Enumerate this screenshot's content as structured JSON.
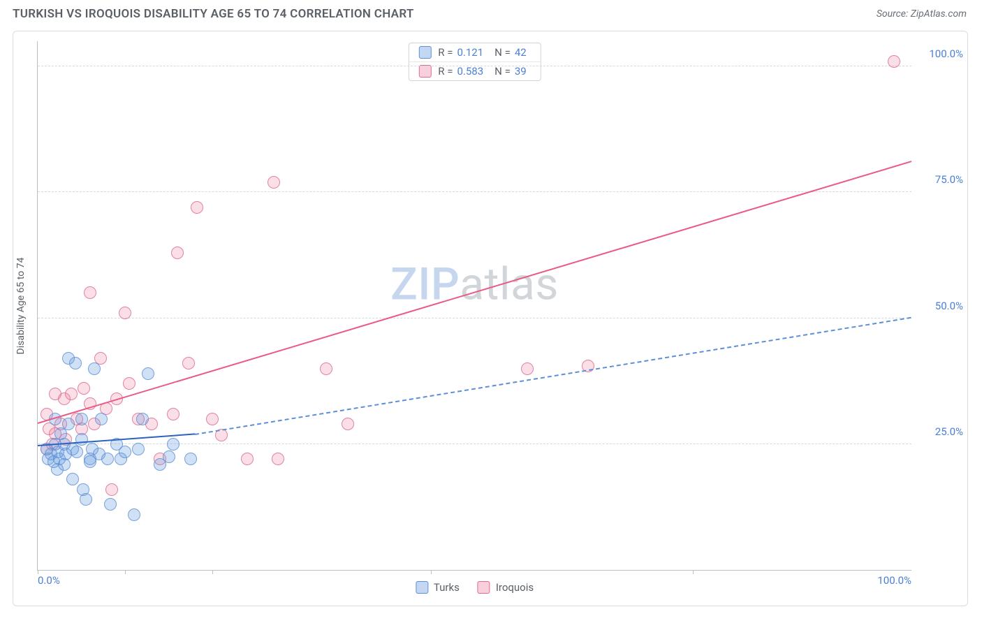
{
  "header": {
    "title": "TURKISH VS IROQUOIS DISABILITY AGE 65 TO 74 CORRELATION CHART",
    "source": "Source: ZipAtlas.com"
  },
  "watermark": {
    "part1": "ZIP",
    "part2": "atlas"
  },
  "chart": {
    "type": "scatter",
    "ylabel": "Disability Age 65 to 74",
    "xlim": [
      0,
      100
    ],
    "ylim": [
      0,
      105
    ],
    "background_color": "#ffffff",
    "grid_color": "#d5d9de",
    "axis_color": "#b9bec4",
    "tick_label_color": "#4b7fd6",
    "y_gridlines": [
      25,
      50,
      75,
      100
    ],
    "y_tick_labels": [
      "25.0%",
      "50.0%",
      "75.0%",
      "100.0%"
    ],
    "x_minor_ticks": [
      0,
      10,
      20,
      45,
      75
    ],
    "x_tick_labels": [
      {
        "x": 0,
        "label": "0.0%"
      },
      {
        "x": 100,
        "label": "100.0%"
      }
    ],
    "marker_size": 18,
    "series": {
      "a": {
        "label": "Turks",
        "fill": "rgba(104,156,224,0.35)",
        "stroke": "#5d8fd6",
        "R": "0.121",
        "N": "42",
        "trend": {
          "solid": {
            "x1": 0,
            "y1": 24.5,
            "x2": 18,
            "y2": 26.8,
            "color": "#2d62c0",
            "width": 2.5
          },
          "dashed": {
            "x1": 18,
            "y1": 26.8,
            "x2": 100,
            "y2": 50.0,
            "color": "#5d8fd6",
            "width": 2
          }
        },
        "points": [
          [
            1,
            24
          ],
          [
            1.2,
            22
          ],
          [
            1.5,
            23
          ],
          [
            1.8,
            21.5
          ],
          [
            2,
            25
          ],
          [
            2,
            30
          ],
          [
            2.2,
            20
          ],
          [
            2.3,
            23.5
          ],
          [
            2.5,
            22
          ],
          [
            2.6,
            27
          ],
          [
            3,
            21
          ],
          [
            3,
            25
          ],
          [
            3.2,
            23
          ],
          [
            3.5,
            42
          ],
          [
            3.5,
            29
          ],
          [
            4,
            18
          ],
          [
            4,
            24
          ],
          [
            4.3,
            41
          ],
          [
            4.5,
            23.5
          ],
          [
            5,
            26
          ],
          [
            5,
            30
          ],
          [
            5.2,
            16
          ],
          [
            5.5,
            14
          ],
          [
            6,
            22
          ],
          [
            6,
            21.5
          ],
          [
            6.2,
            24
          ],
          [
            6.5,
            40
          ],
          [
            7,
            23
          ],
          [
            7.3,
            30
          ],
          [
            8,
            22
          ],
          [
            8.3,
            13
          ],
          [
            9,
            25
          ],
          [
            9.5,
            22
          ],
          [
            10,
            23.5
          ],
          [
            11,
            11
          ],
          [
            11.5,
            24
          ],
          [
            12,
            30
          ],
          [
            12.6,
            39
          ],
          [
            14,
            21
          ],
          [
            15,
            22.5
          ],
          [
            15.5,
            25
          ],
          [
            17.5,
            22
          ]
        ]
      },
      "b": {
        "label": "Iroquois",
        "fill": "rgba(232,120,155,0.28)",
        "stroke": "#e06a92",
        "R": "0.583",
        "N": "39",
        "trend": {
          "solid": {
            "x1": 0,
            "y1": 29,
            "x2": 100,
            "y2": 81,
            "color": "#e85b85",
            "width": 2.5
          }
        },
        "points": [
          [
            1,
            24
          ],
          [
            1,
            31
          ],
          [
            1.3,
            28
          ],
          [
            1.7,
            25
          ],
          [
            2,
            27
          ],
          [
            2,
            35
          ],
          [
            2.6,
            29
          ],
          [
            3,
            34
          ],
          [
            3.2,
            26
          ],
          [
            3.8,
            35
          ],
          [
            4.5,
            30
          ],
          [
            5,
            28
          ],
          [
            5.3,
            36
          ],
          [
            6,
            33
          ],
          [
            6,
            55
          ],
          [
            6.5,
            29
          ],
          [
            7.2,
            42
          ],
          [
            7.8,
            32
          ],
          [
            8.5,
            16
          ],
          [
            9,
            34
          ],
          [
            10,
            51
          ],
          [
            10.5,
            37
          ],
          [
            11.5,
            30
          ],
          [
            13,
            29
          ],
          [
            14,
            22
          ],
          [
            15.5,
            31
          ],
          [
            16,
            63
          ],
          [
            17.3,
            41
          ],
          [
            18.2,
            72
          ],
          [
            20,
            30
          ],
          [
            21,
            26.8
          ],
          [
            24,
            22
          ],
          [
            27,
            77
          ],
          [
            27.5,
            22
          ],
          [
            33,
            40
          ],
          [
            35.5,
            29
          ],
          [
            56,
            40
          ],
          [
            63,
            40.5
          ],
          [
            98,
            101
          ]
        ]
      }
    },
    "legend": {
      "top": {
        "r_label": "R =",
        "n_label": "N ="
      },
      "bottom": {
        "items": [
          "a",
          "b"
        ]
      }
    }
  }
}
